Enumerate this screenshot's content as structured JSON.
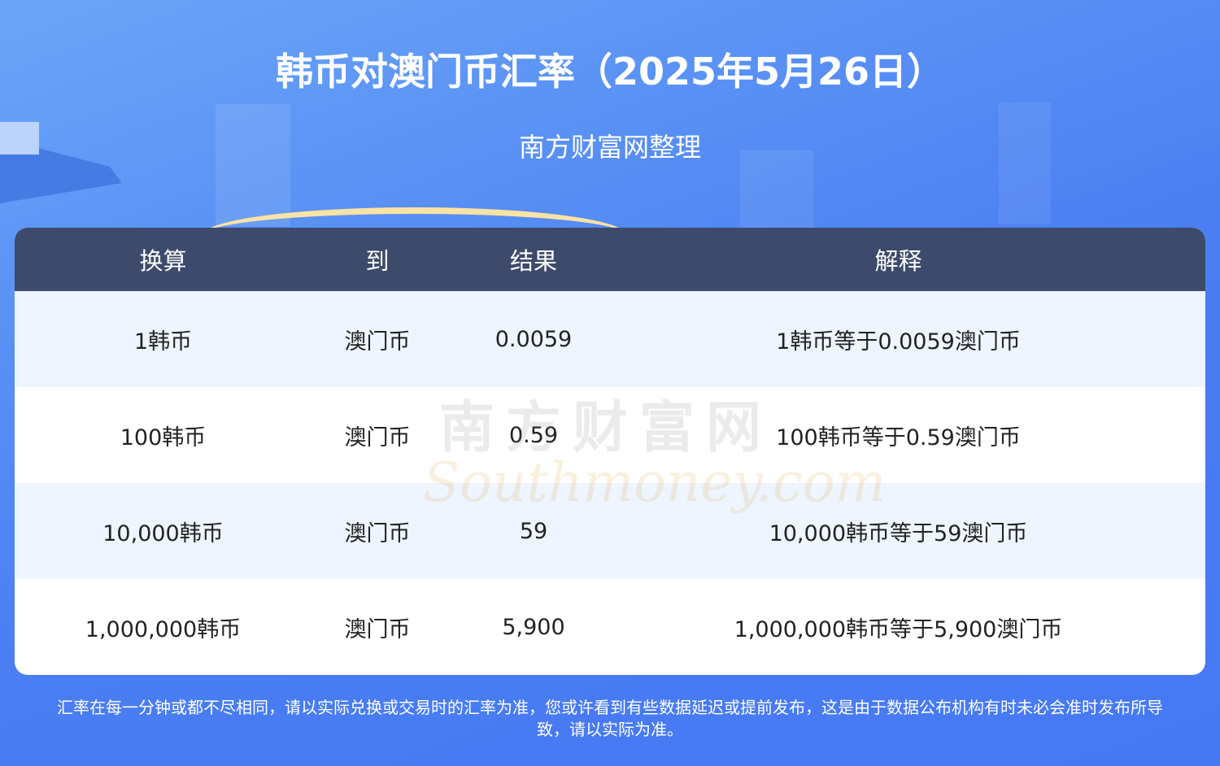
{
  "header": {
    "title": "韩币对澳门币汇率（2025年5月26日）",
    "subtitle": "南方财富网整理"
  },
  "table": {
    "columns": [
      "换算",
      "到",
      "结果",
      "解释"
    ],
    "rows": [
      [
        "1韩币",
        "澳门币",
        "0.0059",
        "1韩币等于0.0059澳门币"
      ],
      [
        "100韩币",
        "澳门币",
        "0.59",
        "100韩币等于0.59澳门币"
      ],
      [
        "10,000韩币",
        "澳门币",
        "59",
        "10,000韩币等于59澳门币"
      ],
      [
        "1,000,000韩币",
        "澳门币",
        "5,900",
        "1,000,000韩币等于5,900澳门币"
      ]
    ]
  },
  "watermark": {
    "cn": "南方财富网",
    "en": "Southmoney.com"
  },
  "footer": {
    "line1": "汇率在每一分钟或都不尽相同，请以实际兑换或交易时的汇率为准，您或许看到有些数据延迟或提前发布，这是由于数据公布机构有时未必会准时发布所导",
    "line2": "致，请以实际为准。"
  },
  "colors": {
    "background": "#4678f4",
    "header_row": "#3d4a6b",
    "alt_row": "#eef5fe"
  }
}
